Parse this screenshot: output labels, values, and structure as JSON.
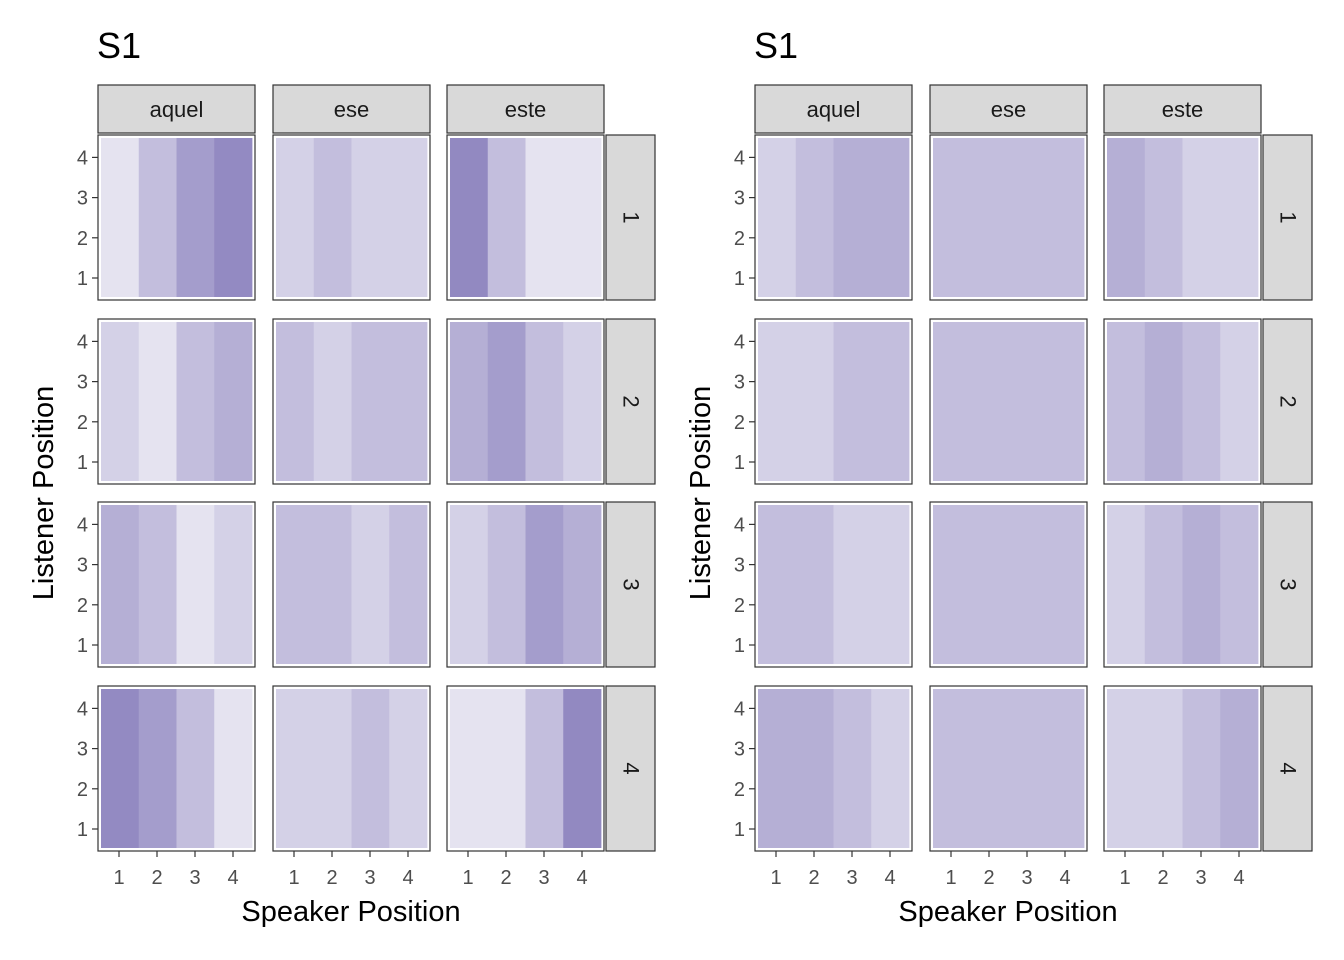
{
  "chart_data": [
    {
      "type": "heatmap",
      "title": "S1",
      "xlabel": "Speaker Position",
      "ylabel": "Listener Position",
      "x_ticks": [
        "1",
        "2",
        "3",
        "4"
      ],
      "y_ticks": [
        "1",
        "2",
        "3",
        "4"
      ],
      "col_facets": [
        "aquel",
        "ese",
        "este"
      ],
      "row_facets": [
        "1",
        "2",
        "3",
        "4"
      ],
      "value_range": [
        0,
        1
      ],
      "low_color": "#ffffff",
      "high_color": "#54469e",
      "facets": [
        {
          "row": "1",
          "col": "aquel",
          "values": [
            0.15,
            0.35,
            0.53,
            0.63
          ]
        },
        {
          "row": "1",
          "col": "ese",
          "values": [
            0.25,
            0.35,
            0.25,
            0.25
          ]
        },
        {
          "row": "1",
          "col": "este",
          "values": [
            0.64,
            0.35,
            0.15,
            0.15
          ]
        },
        {
          "row": "2",
          "col": "aquel",
          "values": [
            0.25,
            0.15,
            0.35,
            0.43
          ]
        },
        {
          "row": "2",
          "col": "ese",
          "values": [
            0.35,
            0.25,
            0.35,
            0.35
          ]
        },
        {
          "row": "2",
          "col": "este",
          "values": [
            0.43,
            0.53,
            0.35,
            0.25
          ]
        },
        {
          "row": "3",
          "col": "aquel",
          "values": [
            0.43,
            0.35,
            0.15,
            0.25
          ]
        },
        {
          "row": "3",
          "col": "ese",
          "values": [
            0.35,
            0.35,
            0.25,
            0.35
          ]
        },
        {
          "row": "3",
          "col": "este",
          "values": [
            0.25,
            0.35,
            0.53,
            0.43
          ]
        },
        {
          "row": "4",
          "col": "aquel",
          "values": [
            0.63,
            0.53,
            0.35,
            0.15
          ]
        },
        {
          "row": "4",
          "col": "ese",
          "values": [
            0.25,
            0.25,
            0.35,
            0.25
          ]
        },
        {
          "row": "4",
          "col": "este",
          "values": [
            0.15,
            0.15,
            0.35,
            0.64
          ]
        }
      ]
    },
    {
      "type": "heatmap",
      "title": "S1",
      "xlabel": "Speaker Position",
      "ylabel": "Listener Position",
      "x_ticks": [
        "1",
        "2",
        "3",
        "4"
      ],
      "y_ticks": [
        "1",
        "2",
        "3",
        "4"
      ],
      "col_facets": [
        "aquel",
        "ese",
        "este"
      ],
      "row_facets": [
        "1",
        "2",
        "3",
        "4"
      ],
      "value_range": [
        0,
        1
      ],
      "low_color": "#ffffff",
      "high_color": "#54469e",
      "facets": [
        {
          "row": "1",
          "col": "aquel",
          "values": [
            0.25,
            0.35,
            0.43,
            0.43
          ]
        },
        {
          "row": "1",
          "col": "ese",
          "values": [
            0.35,
            0.35,
            0.35,
            0.35
          ]
        },
        {
          "row": "1",
          "col": "este",
          "values": [
            0.43,
            0.35,
            0.25,
            0.25
          ]
        },
        {
          "row": "2",
          "col": "aquel",
          "values": [
            0.25,
            0.25,
            0.35,
            0.35
          ]
        },
        {
          "row": "2",
          "col": "ese",
          "values": [
            0.35,
            0.35,
            0.35,
            0.35
          ]
        },
        {
          "row": "2",
          "col": "este",
          "values": [
            0.35,
            0.43,
            0.35,
            0.25
          ]
        },
        {
          "row": "3",
          "col": "aquel",
          "values": [
            0.35,
            0.35,
            0.25,
            0.25
          ]
        },
        {
          "row": "3",
          "col": "ese",
          "values": [
            0.35,
            0.35,
            0.35,
            0.35
          ]
        },
        {
          "row": "3",
          "col": "este",
          "values": [
            0.25,
            0.35,
            0.43,
            0.35
          ]
        },
        {
          "row": "4",
          "col": "aquel",
          "values": [
            0.43,
            0.43,
            0.35,
            0.25
          ]
        },
        {
          "row": "4",
          "col": "ese",
          "values": [
            0.35,
            0.35,
            0.35,
            0.35
          ]
        },
        {
          "row": "4",
          "col": "este",
          "values": [
            0.25,
            0.25,
            0.35,
            0.43
          ]
        }
      ]
    }
  ]
}
